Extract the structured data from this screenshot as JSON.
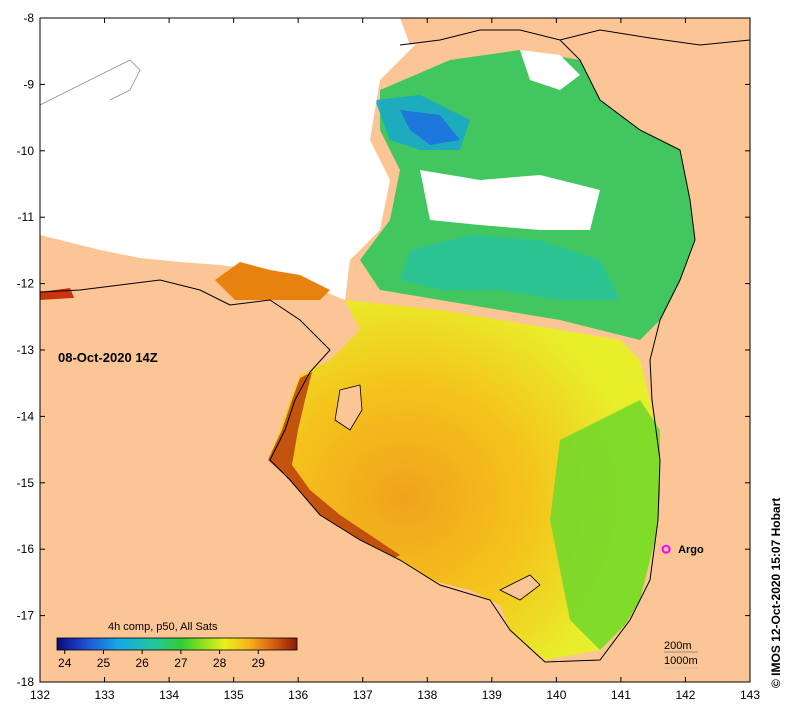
{
  "map": {
    "lon_ticks": [
      "132",
      "133",
      "134",
      "135",
      "136",
      "137",
      "138",
      "139",
      "140",
      "141",
      "142",
      "143"
    ],
    "lat_ticks": [
      "-8",
      "-9",
      "-10",
      "-11",
      "-12",
      "-13",
      "-14",
      "-15",
      "-16",
      "-17",
      "-18"
    ],
    "lon_range": [
      132,
      143
    ],
    "lat_range": [
      -18,
      -8
    ],
    "date_label": "08-Oct-2020 14Z",
    "argo_label": "Argo",
    "argo_position": {
      "lon": 141.7,
      "lat": -16.0
    },
    "composite_label": "4h comp, p50, All Sats",
    "colorbar_ticks": [
      "24",
      "25",
      "26",
      "27",
      "28",
      "29"
    ],
    "colorbar_range": [
      23.8,
      30.0
    ],
    "isobath_labels": [
      "200m",
      "1000m"
    ],
    "credit": "© IMOS 12-Oct-2020 15:07 Hobart",
    "colors": {
      "land": "#fbc595",
      "no_data": "#ffffff",
      "argo_marker": "#ff00ff"
    }
  }
}
